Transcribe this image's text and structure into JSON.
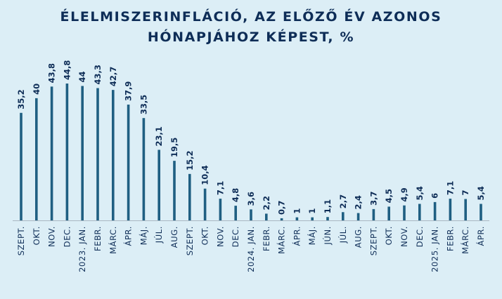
{
  "chart_data": {
    "type": "bar",
    "title_line1": "ÉLELMISZERINFLÁCIÓ, AZ ELŐZŐ ÉV AZONOS",
    "title_line2": "HÓNAPJÁHOZ KÉPEST, %",
    "bar_color": "#1f5f82",
    "baseline_color": "#a9b7c2",
    "categories": [
      "SZEPT.",
      "OKT.",
      "NOV.",
      "DEC.",
      "2023. JAN.",
      "FEBR.",
      "MÁRC.",
      "ÁPR.",
      "MÁJ.",
      "JÚL.",
      "AUG.",
      "SZEPT.",
      "OKT.",
      "NOV.",
      "DEC.",
      "2024. JAN.",
      "FEBR.",
      "MÁRC.",
      "ÁPR.",
      "MÁJ.",
      "JÚN.",
      "JÚL.",
      "AUG.",
      "SZEPT.",
      "OKT.",
      "NOV.",
      "DEC.",
      "2025. JAN.",
      "FEBR.",
      "MÁRC.",
      "ÁPR."
    ],
    "values": [
      35.2,
      40,
      43.8,
      44.8,
      44,
      43.3,
      42.7,
      37.9,
      33.5,
      23.1,
      19.5,
      15.2,
      10.4,
      7.1,
      4.8,
      3.6,
      2.2,
      0.7,
      1,
      1,
      1.1,
      2.7,
      2.4,
      3.7,
      4.5,
      4.9,
      5.4,
      6,
      7.1,
      7,
      5.4
    ],
    "value_labels": [
      "35,2",
      "40",
      "43,8",
      "44,8",
      "44",
      "43,3",
      "42,7",
      "37,9",
      "33,5",
      "23,1",
      "19,5",
      "15,2",
      "10,4",
      "7,1",
      "4,8",
      "3,6",
      "2,2",
      "0,7",
      "1",
      "1",
      "1,1",
      "2,7",
      "2,4",
      "3,7",
      "4,5",
      "4,9",
      "5,4",
      "6",
      "7,1",
      "7",
      "5,4"
    ],
    "ylim": [
      0,
      44.8
    ]
  }
}
